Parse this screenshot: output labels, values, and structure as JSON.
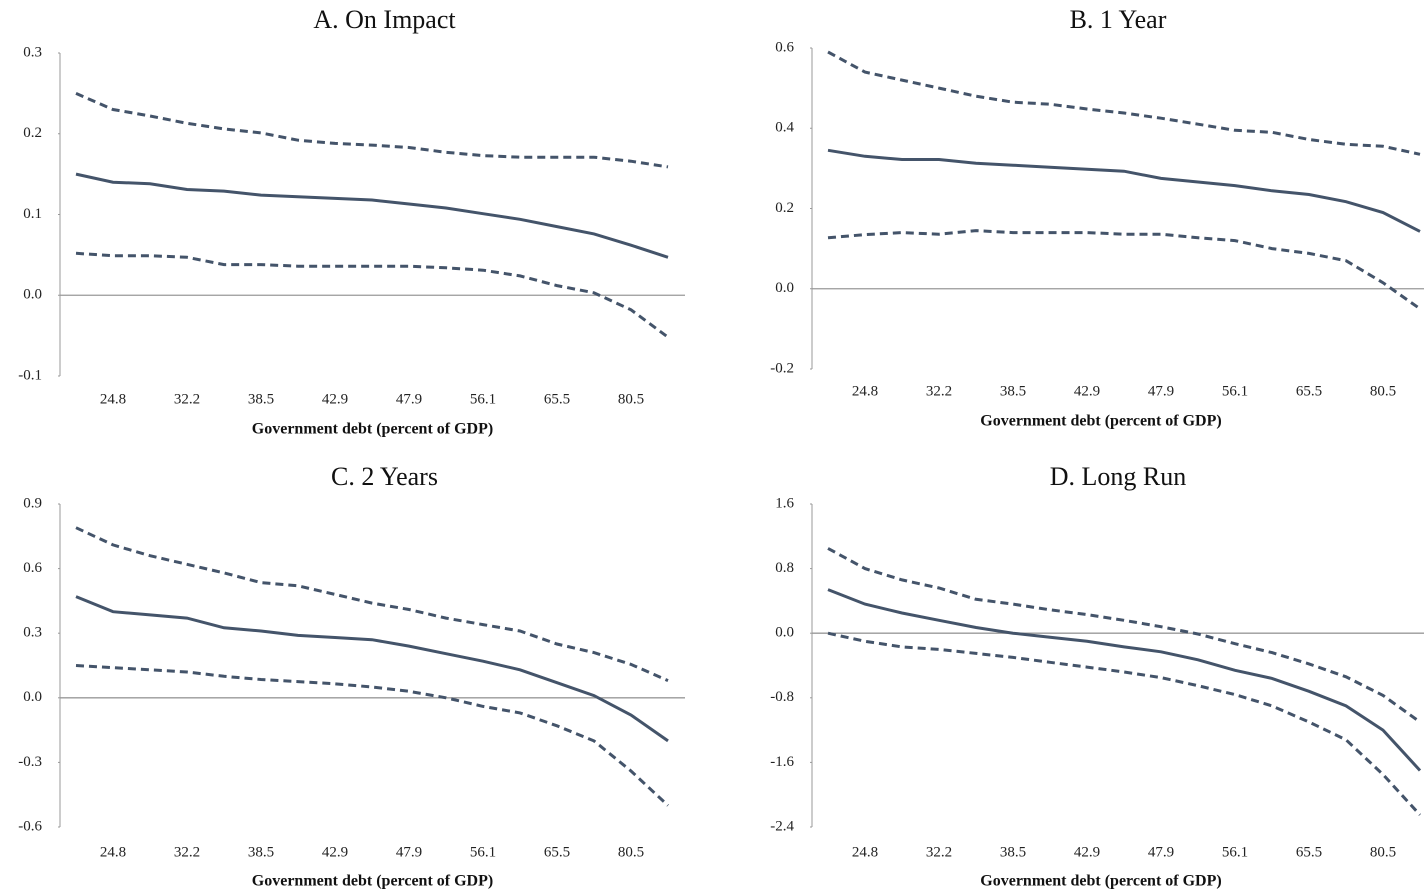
{
  "chart_data": [
    {
      "type": "line",
      "title": "A. On Impact",
      "x_label": "Government debt (percent of GDP)",
      "categories": [
        null,
        "24.8",
        null,
        "32.2",
        null,
        "38.5",
        null,
        "42.9",
        null,
        "47.9",
        null,
        "56.1",
        null,
        "65.5",
        null,
        "80.5",
        null
      ],
      "ylim": [
        -0.1,
        0.3
      ],
      "yticks": [
        -0.1,
        {
          "value": 0,
          "label": "0.0"
        },
        0.1,
        0.2,
        0.3
      ],
      "series": [
        {
          "color": "#44546a",
          "style": "solid",
          "values": [
            0.15,
            0.14,
            0.138,
            0.131,
            0.129,
            0.124,
            0.122,
            0.12,
            0.118,
            0.113,
            0.108,
            0.101,
            0.094,
            0.085,
            0.076,
            0.062,
            0.047
          ]
        },
        {
          "color": "#44546a",
          "style": "dashed",
          "values": [
            0.25,
            0.23,
            0.222,
            0.213,
            0.206,
            0.201,
            0.192,
            0.188,
            0.186,
            0.183,
            0.177,
            0.173,
            0.171,
            0.171,
            0.171,
            0.166,
            0.159
          ]
        },
        {
          "color": "#44546a",
          "style": "dashed",
          "values": [
            0.052,
            0.049,
            0.049,
            0.047,
            0.038,
            0.038,
            0.036,
            0.036,
            0.036,
            0.036,
            0.034,
            0.031,
            0.024,
            0.012,
            0.003,
            -0.018,
            -0.052
          ]
        }
      ]
    },
    {
      "type": "line",
      "title": "B. 1 Year",
      "x_label": "Government debt (percent of GDP)",
      "categories": [
        null,
        "24.8",
        null,
        "32.2",
        null,
        "38.5",
        null,
        "42.9",
        null,
        "47.9",
        null,
        "56.1",
        null,
        "65.5",
        null,
        "80.5",
        null
      ],
      "ylim": [
        -0.2,
        0.6
      ],
      "yticks": [
        -0.2,
        {
          "value": 0,
          "label": "0.0"
        },
        0.2,
        0.4,
        0.6
      ],
      "series": [
        {
          "color": "#44546a",
          "style": "solid",
          "values": [
            0.345,
            0.33,
            0.322,
            0.322,
            0.313,
            0.308,
            0.303,
            0.298,
            0.293,
            0.275,
            0.266,
            0.257,
            0.244,
            0.235,
            0.217,
            0.19,
            0.143
          ]
        },
        {
          "color": "#44546a",
          "style": "dashed",
          "values": [
            0.59,
            0.54,
            0.52,
            0.5,
            0.48,
            0.465,
            0.46,
            0.448,
            0.438,
            0.425,
            0.41,
            0.395,
            0.39,
            0.372,
            0.36,
            0.355,
            0.335
          ]
        },
        {
          "color": "#44546a",
          "style": "dashed",
          "values": [
            0.127,
            0.135,
            0.14,
            0.136,
            0.145,
            0.14,
            0.14,
            0.14,
            0.136,
            0.136,
            0.127,
            0.12,
            0.1,
            0.088,
            0.07,
            0.015,
            -0.05
          ]
        }
      ]
    },
    {
      "type": "line",
      "title": "C. 2 Years",
      "x_label": "Government debt (percent of GDP)",
      "categories": [
        null,
        "24.8",
        null,
        "32.2",
        null,
        "38.5",
        null,
        "42.9",
        null,
        "47.9",
        null,
        "56.1",
        null,
        "65.5",
        null,
        "80.5",
        null
      ],
      "ylim": [
        -0.6,
        0.9
      ],
      "yticks": [
        -0.6,
        -0.3,
        {
          "value": 0,
          "label": "0.0"
        },
        0.3,
        0.6,
        0.9
      ],
      "series": [
        {
          "color": "#44546a",
          "style": "solid",
          "values": [
            0.47,
            0.4,
            0.385,
            0.37,
            0.325,
            0.31,
            0.29,
            0.28,
            0.27,
            0.24,
            0.205,
            0.17,
            0.13,
            0.07,
            0.01,
            -0.08,
            -0.2
          ]
        },
        {
          "color": "#44546a",
          "style": "dashed",
          "values": [
            0.79,
            0.71,
            0.66,
            0.62,
            0.58,
            0.535,
            0.52,
            0.48,
            0.44,
            0.41,
            0.37,
            0.34,
            0.31,
            0.25,
            0.21,
            0.155,
            0.08
          ]
        },
        {
          "color": "#44546a",
          "style": "dashed",
          "values": [
            0.15,
            0.14,
            0.13,
            0.12,
            0.1,
            0.085,
            0.075,
            0.065,
            0.05,
            0.03,
            0.0,
            -0.04,
            -0.07,
            -0.13,
            -0.2,
            -0.34,
            -0.5
          ]
        }
      ]
    },
    {
      "type": "line",
      "title": "D. Long Run",
      "x_label": "Government debt (percent of GDP)",
      "categories": [
        null,
        "24.8",
        null,
        "32.2",
        null,
        "38.5",
        null,
        "42.9",
        null,
        "47.9",
        null,
        "56.1",
        null,
        "65.5",
        null,
        "80.5",
        null
      ],
      "ylim": [
        -2.4,
        1.6
      ],
      "yticks": [
        -2.4,
        -1.6,
        -0.8,
        {
          "value": 0,
          "label": "0.0"
        },
        0.8,
        1.6
      ],
      "series": [
        {
          "color": "#44546a",
          "style": "solid",
          "values": [
            0.54,
            0.36,
            0.25,
            0.16,
            0.07,
            0.0,
            -0.05,
            -0.1,
            -0.17,
            -0.23,
            -0.33,
            -0.46,
            -0.56,
            -0.72,
            -0.9,
            -1.2,
            -1.7
          ]
        },
        {
          "color": "#44546a",
          "style": "dashed",
          "values": [
            1.05,
            0.8,
            0.66,
            0.56,
            0.42,
            0.36,
            0.29,
            0.23,
            0.16,
            0.08,
            -0.01,
            -0.13,
            -0.24,
            -0.38,
            -0.54,
            -0.77,
            -1.1
          ]
        },
        {
          "color": "#44546a",
          "style": "dashed",
          "values": [
            0.0,
            -0.1,
            -0.17,
            -0.2,
            -0.25,
            -0.3,
            -0.36,
            -0.42,
            -0.48,
            -0.55,
            -0.65,
            -0.76,
            -0.9,
            -1.1,
            -1.32,
            -1.75,
            -2.25
          ]
        }
      ]
    }
  ]
}
